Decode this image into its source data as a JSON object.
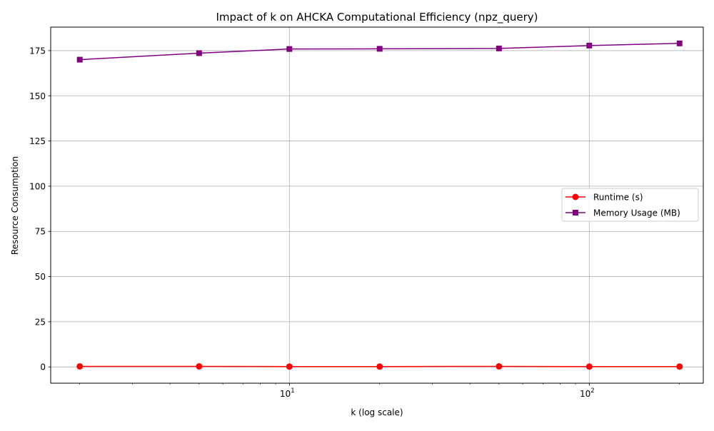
{
  "chart_data": {
    "type": "line",
    "title": "Impact of k on AHCKA Computational Efficiency (npz_query)",
    "xlabel": "k (log scale)",
    "ylabel": "Resource Consumption",
    "xscale": "log",
    "xlim": [
      1.6,
      240
    ],
    "ylim": [
      -9,
      188
    ],
    "x": [
      2,
      5,
      10,
      20,
      50,
      100,
      200
    ],
    "xticks": [
      {
        "value": 10,
        "base": "10",
        "exp": "1"
      },
      {
        "value": 100,
        "base": "10",
        "exp": "2"
      }
    ],
    "yticks": [
      0,
      25,
      50,
      75,
      100,
      125,
      150,
      175
    ],
    "grid": true,
    "legend_position": "center-right",
    "series": [
      {
        "name": "Runtime (s)",
        "color": "#ff0000",
        "marker": "circle",
        "values": [
          0.3,
          0.3,
          0.2,
          0.2,
          0.3,
          0.2,
          0.2
        ]
      },
      {
        "name": "Memory Usage (MB)",
        "color": "#800080",
        "marker": "square",
        "values": [
          170.0,
          173.6,
          175.9,
          176.0,
          176.2,
          177.8,
          179.0
        ]
      }
    ]
  }
}
